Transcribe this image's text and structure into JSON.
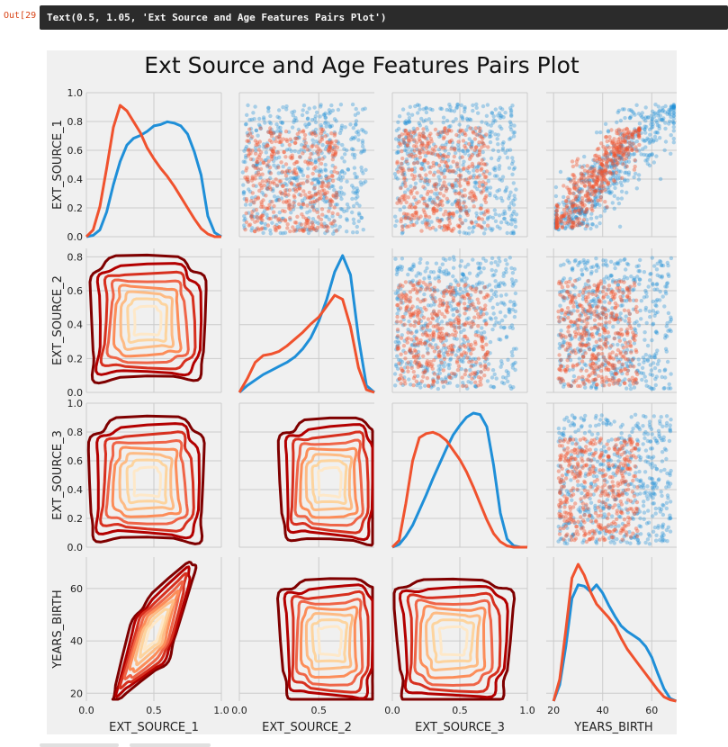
{
  "cell": {
    "prompt": "Out[29",
    "output_text": "Text(0.5, 1.05, 'Ext Source and Age Features Pairs Plot')"
  },
  "chart_data": {
    "type": "pairs",
    "title": "Ext Source and Age Features Pairs Plot",
    "variables": [
      "EXT_SOURCE_1",
      "EXT_SOURCE_2",
      "EXT_SOURCE_3",
      "YEARS_BIRTH"
    ],
    "ranges": {
      "EXT_SOURCE_1": [
        0.0,
        1.0
      ],
      "EXT_SOURCE_2": [
        0.0,
        0.85
      ],
      "EXT_SOURCE_3": [
        0.0,
        1.0
      ],
      "YEARS_BIRTH": [
        17,
        72
      ]
    },
    "y_ticks": {
      "EXT_SOURCE_1": [
        "0.0",
        "0.2",
        "0.4",
        "0.6",
        "0.8",
        "1.0"
      ],
      "EXT_SOURCE_2": [
        "0.0",
        "0.2",
        "0.4",
        "0.6",
        "0.8"
      ],
      "EXT_SOURCE_3": [
        "0.0",
        "0.2",
        "0.4",
        "0.6",
        "0.8",
        "1.0"
      ],
      "YEARS_BIRTH": [
        "20",
        "40",
        "60"
      ]
    },
    "x_ticks": {
      "EXT_SOURCE_1": [
        "0.0",
        "0.5",
        "1.0"
      ],
      "EXT_SOURCE_2": [
        "0.0",
        "0.5"
      ],
      "EXT_SOURCE_3": [
        "0.0",
        "0.5",
        "1.0"
      ],
      "YEARS_BIRTH": [
        "20",
        "40",
        "60"
      ]
    },
    "series_colors": {
      "blue": "#1f8fd8",
      "red": "#f0522e"
    },
    "kde_palette": [
      "#7f0000",
      "#b30000",
      "#d7301f",
      "#ef6548",
      "#fc8d59",
      "#fdbb84",
      "#fdd49e",
      "#fee8c8"
    ],
    "diagonal_kde": {
      "EXT_SOURCE_1": {
        "x": [
          0.0,
          0.05,
          0.1,
          0.15,
          0.2,
          0.25,
          0.3,
          0.35,
          0.4,
          0.45,
          0.5,
          0.55,
          0.6,
          0.65,
          0.7,
          0.75,
          0.8,
          0.85,
          0.9,
          0.95,
          1.0
        ],
        "blue": [
          0.0,
          0.01,
          0.05,
          0.18,
          0.38,
          0.55,
          0.67,
          0.72,
          0.74,
          0.77,
          0.81,
          0.82,
          0.84,
          0.83,
          0.81,
          0.75,
          0.62,
          0.45,
          0.15,
          0.03,
          0.0
        ],
        "red": [
          0.0,
          0.05,
          0.22,
          0.5,
          0.8,
          0.96,
          0.92,
          0.84,
          0.76,
          0.65,
          0.57,
          0.5,
          0.44,
          0.37,
          0.29,
          0.21,
          0.13,
          0.06,
          0.02,
          0.0,
          0.0
        ]
      },
      "EXT_SOURCE_2": {
        "x": [
          0.0,
          0.05,
          0.1,
          0.15,
          0.2,
          0.25,
          0.3,
          0.35,
          0.4,
          0.45,
          0.5,
          0.55,
          0.6,
          0.65,
          0.7,
          0.75,
          0.8,
          0.85
        ],
        "blue": [
          0.0,
          0.05,
          0.09,
          0.13,
          0.16,
          0.19,
          0.22,
          0.26,
          0.32,
          0.4,
          0.52,
          0.68,
          0.88,
          1.0,
          0.86,
          0.4,
          0.05,
          0.0
        ],
        "red": [
          0.0,
          0.1,
          0.22,
          0.27,
          0.28,
          0.3,
          0.34,
          0.39,
          0.44,
          0.5,
          0.55,
          0.63,
          0.71,
          0.68,
          0.48,
          0.18,
          0.02,
          0.0
        ]
      },
      "EXT_SOURCE_3": {
        "x": [
          0.0,
          0.05,
          0.1,
          0.15,
          0.2,
          0.25,
          0.3,
          0.35,
          0.4,
          0.45,
          0.5,
          0.55,
          0.6,
          0.65,
          0.7,
          0.75,
          0.8,
          0.85,
          0.9,
          0.95,
          1.0
        ],
        "blue": [
          0.0,
          0.02,
          0.08,
          0.16,
          0.27,
          0.38,
          0.5,
          0.61,
          0.72,
          0.82,
          0.89,
          0.95,
          0.98,
          0.97,
          0.88,
          0.6,
          0.25,
          0.06,
          0.01,
          0.0,
          0.0
        ],
        "red": [
          0.0,
          0.05,
          0.32,
          0.63,
          0.8,
          0.83,
          0.84,
          0.82,
          0.78,
          0.71,
          0.64,
          0.55,
          0.44,
          0.32,
          0.2,
          0.1,
          0.04,
          0.01,
          0.0,
          0.0,
          0.0
        ]
      },
      "YEARS_BIRTH": {
        "x": [
          20,
          22.5,
          25,
          27.5,
          30,
          32.5,
          35,
          37.5,
          40,
          42.5,
          45,
          47.5,
          50,
          52.5,
          55,
          57.5,
          60,
          62.5,
          65,
          67.5,
          70
        ],
        "blue": [
          0.0,
          0.12,
          0.4,
          0.75,
          0.85,
          0.84,
          0.8,
          0.85,
          0.79,
          0.7,
          0.62,
          0.55,
          0.51,
          0.48,
          0.45,
          0.4,
          0.32,
          0.2,
          0.09,
          0.02,
          0.0
        ],
        "red": [
          0.0,
          0.16,
          0.52,
          0.9,
          1.0,
          0.92,
          0.8,
          0.71,
          0.66,
          0.61,
          0.55,
          0.46,
          0.38,
          0.32,
          0.26,
          0.2,
          0.14,
          0.08,
          0.03,
          0.01,
          0.0
        ]
      }
    },
    "grid": true,
    "legend": "none"
  }
}
